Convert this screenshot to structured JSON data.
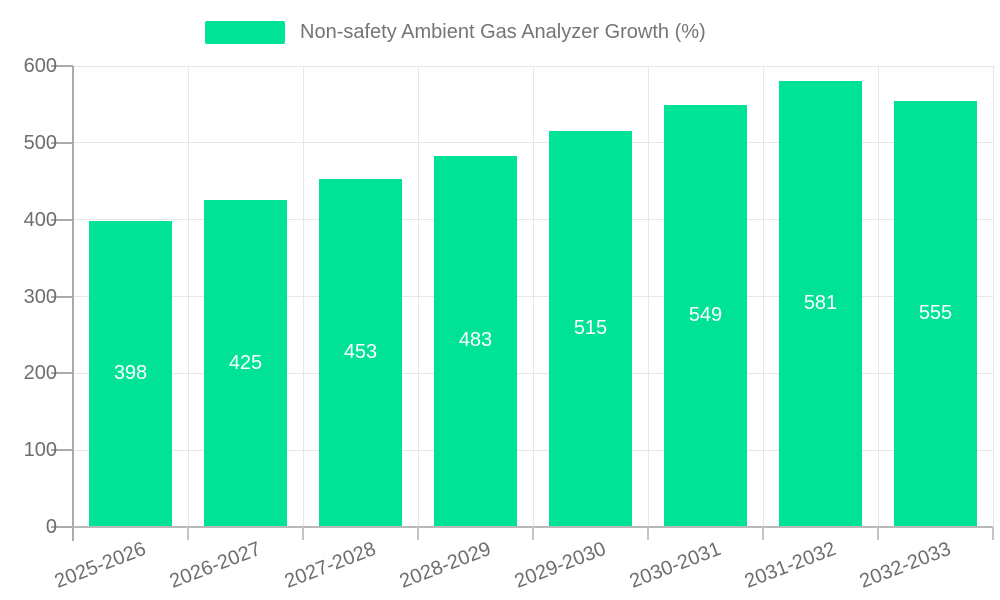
{
  "chart_data": {
    "type": "bar",
    "title": "Non-safety Ambient Gas Analyzer Growth (%)",
    "categories": [
      "2025-2026",
      "2026-2027",
      "2027-2028",
      "2028-2029",
      "2029-2030",
      "2030-2031",
      "2031-2032",
      "2032-2033"
    ],
    "values": [
      398,
      425,
      453,
      483,
      515,
      549,
      581,
      555
    ],
    "series": [
      {
        "name": "Non-safety Ambient Gas Analyzer Growth (%)",
        "values": [
          398,
          425,
          453,
          483,
          515,
          549,
          581,
          555
        ]
      }
    ],
    "xlabel": "",
    "ylabel": "",
    "ylim": [
      0,
      600
    ],
    "yticks": [
      0,
      100,
      200,
      300,
      400,
      500,
      600
    ],
    "grid": true,
    "legend_position": "top-center",
    "value_labels": "inside-center"
  },
  "colors": {
    "bar": "#00E396",
    "bar_value_label": "#ffffff",
    "legend_text": "#757575",
    "axis_label": "#6e6e6e",
    "grid_line": "#e7e7e7",
    "axis_line": "#ababab",
    "x_axis_line": "#b8b8b8",
    "x_tick": "#c4c4c4",
    "background": "#ffffff"
  }
}
